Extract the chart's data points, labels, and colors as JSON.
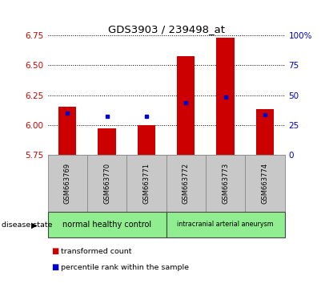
{
  "title": "GDS3903 / 239498_at",
  "samples": [
    "GSM663769",
    "GSM663770",
    "GSM663771",
    "GSM663772",
    "GSM663773",
    "GSM663774"
  ],
  "red_bar_tops": [
    6.15,
    5.97,
    6.0,
    6.58,
    6.73,
    6.13
  ],
  "blue_sq_y": [
    6.1,
    6.07,
    6.07,
    6.19,
    6.235,
    6.085
  ],
  "ymin": 5.75,
  "ymax": 6.75,
  "yticks": [
    5.75,
    6.0,
    6.25,
    6.5,
    6.75
  ],
  "right_yticks": [
    0,
    25,
    50,
    75,
    100
  ],
  "right_ytick_labels": [
    "0",
    "25",
    "50",
    "75",
    "100%"
  ],
  "bar_color": "#cc0000",
  "blue_color": "#0000cc",
  "group1_label": "normal healthy control",
  "group2_label": "intracranial arterial aneurysm",
  "group1_color": "#90ee90",
  "group2_color": "#90ee90",
  "disease_state_label": "disease state",
  "legend_red": "transformed count",
  "legend_blue": "percentile rank within the sample",
  "xticklabel_bg": "#c8c8c8",
  "bar_width": 0.45
}
